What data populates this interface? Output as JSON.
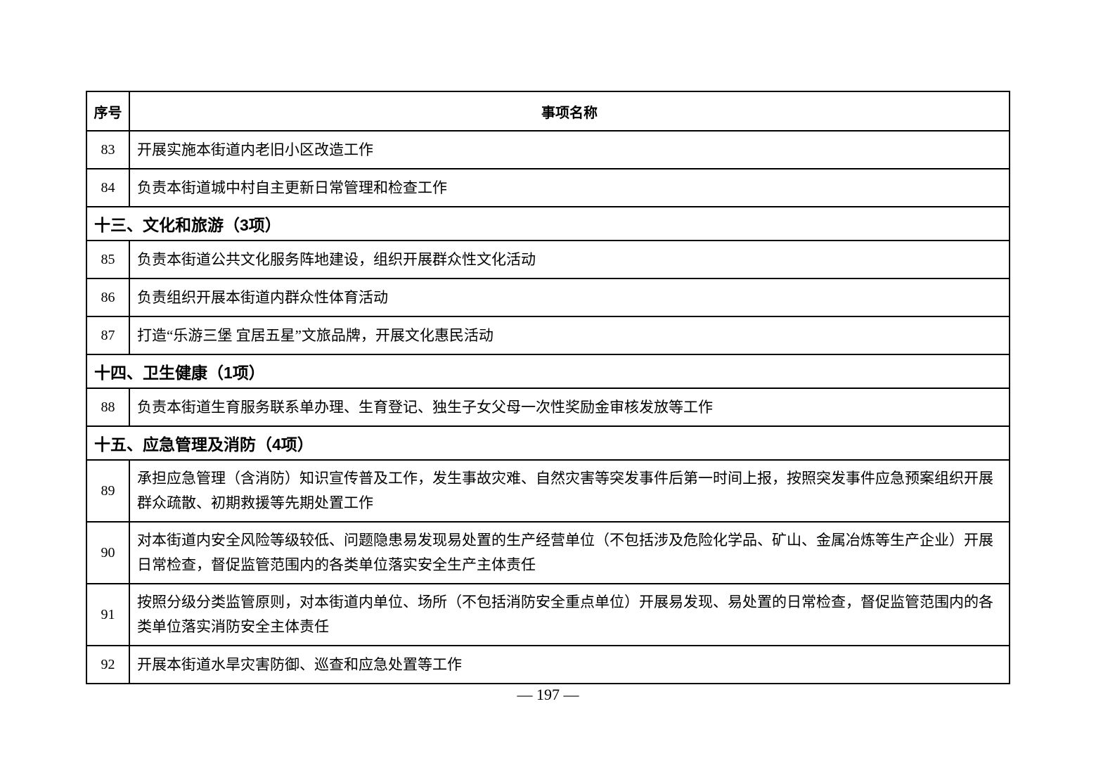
{
  "table": {
    "columns": [
      "序号",
      "事项名称"
    ],
    "rows": [
      {
        "type": "item",
        "num": "83",
        "text": "开展实施本街道内老旧小区改造工作"
      },
      {
        "type": "item",
        "num": "84",
        "text": "负责本街道城中村自主更新日常管理和检查工作"
      },
      {
        "type": "section",
        "text": "十三、文化和旅游（3项）"
      },
      {
        "type": "item",
        "num": "85",
        "text": "负责本街道公共文化服务阵地建设，组织开展群众性文化活动"
      },
      {
        "type": "item",
        "num": "86",
        "text": "负责组织开展本街道内群众性体育活动"
      },
      {
        "type": "item",
        "num": "87",
        "text": "打造“乐游三堡 宜居五星”文旅品牌，开展文化惠民活动"
      },
      {
        "type": "section",
        "text": "十四、卫生健康（1项）"
      },
      {
        "type": "item",
        "num": "88",
        "text": "负责本街道生育服务联系单办理、生育登记、独生子女父母一次性奖励金审核发放等工作"
      },
      {
        "type": "section",
        "text": "十五、应急管理及消防（4项）"
      },
      {
        "type": "item",
        "num": "89",
        "text": "承担应急管理（含消防）知识宣传普及工作，发生事故灾难、自然灾害等突发事件后第一时间上报，按照突发事件应急预案组织开展群众疏散、初期救援等先期处置工作"
      },
      {
        "type": "item",
        "num": "90",
        "text": "对本街道内安全风险等级较低、问题隐患易发现易处置的生产经营单位（不包括涉及危险化学品、矿山、金属冶炼等生产企业）开展日常检查，督促监管范围内的各类单位落实安全生产主体责任"
      },
      {
        "type": "item",
        "num": "91",
        "text": "按照分级分类监管原则，对本街道内单位、场所（不包括消防安全重点单位）开展易发现、易处置的日常检查，督促监管范围内的各类单位落实消防安全主体责任"
      },
      {
        "type": "item",
        "num": "92",
        "text": "开展本街道水旱灾害防御、巡查和应急处置等工作"
      }
    ]
  },
  "footer": {
    "page_number": "— 197 —"
  }
}
